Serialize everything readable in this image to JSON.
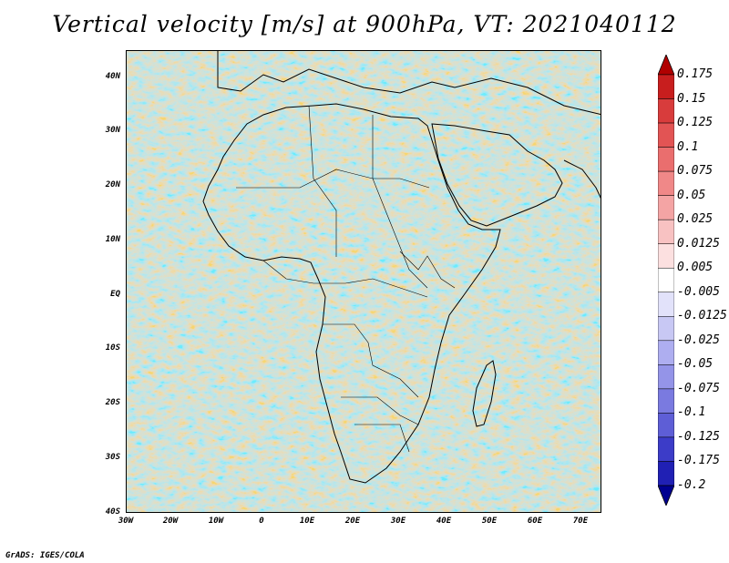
{
  "title": "Vertical velocity [m/s] at 900hPa, VT: 2021040112",
  "footer": "GrADS: IGES/COLA",
  "map": {
    "region": "Africa and Arabian Peninsula",
    "lon_range": [
      -30,
      75
    ],
    "lat_range": [
      -40,
      45
    ],
    "lat_labels": [
      "40N",
      "30N",
      "20N",
      "10N",
      "EQ",
      "10S",
      "20S",
      "30S",
      "40S"
    ],
    "lon_labels": [
      "30W",
      "20W",
      "10W",
      "0",
      "10E",
      "20E",
      "30E",
      "40E",
      "50E",
      "60E",
      "70E"
    ]
  },
  "colorbar": {
    "units": "m/s",
    "labels": [
      "0.175",
      "0.15",
      "0.125",
      "0.1",
      "0.075",
      "0.05",
      "0.025",
      "0.0125",
      "0.005",
      "-0.005",
      "-0.0125",
      "-0.025",
      "-0.05",
      "-0.075",
      "-0.1",
      "-0.125",
      "-0.175",
      "-0.2"
    ],
    "colors": [
      "#b00000",
      "#c81e1e",
      "#d83c3c",
      "#e25454",
      "#ea6e6e",
      "#f08888",
      "#f4a4a4",
      "#f8c2c2",
      "#fce0e0",
      "#ffffff",
      "#e2e2fa",
      "#c8c8f4",
      "#aeaef0",
      "#9494e8",
      "#7a7ae0",
      "#5e5ed6",
      "#3c3cc8",
      "#2020b4",
      "#000090"
    ]
  }
}
